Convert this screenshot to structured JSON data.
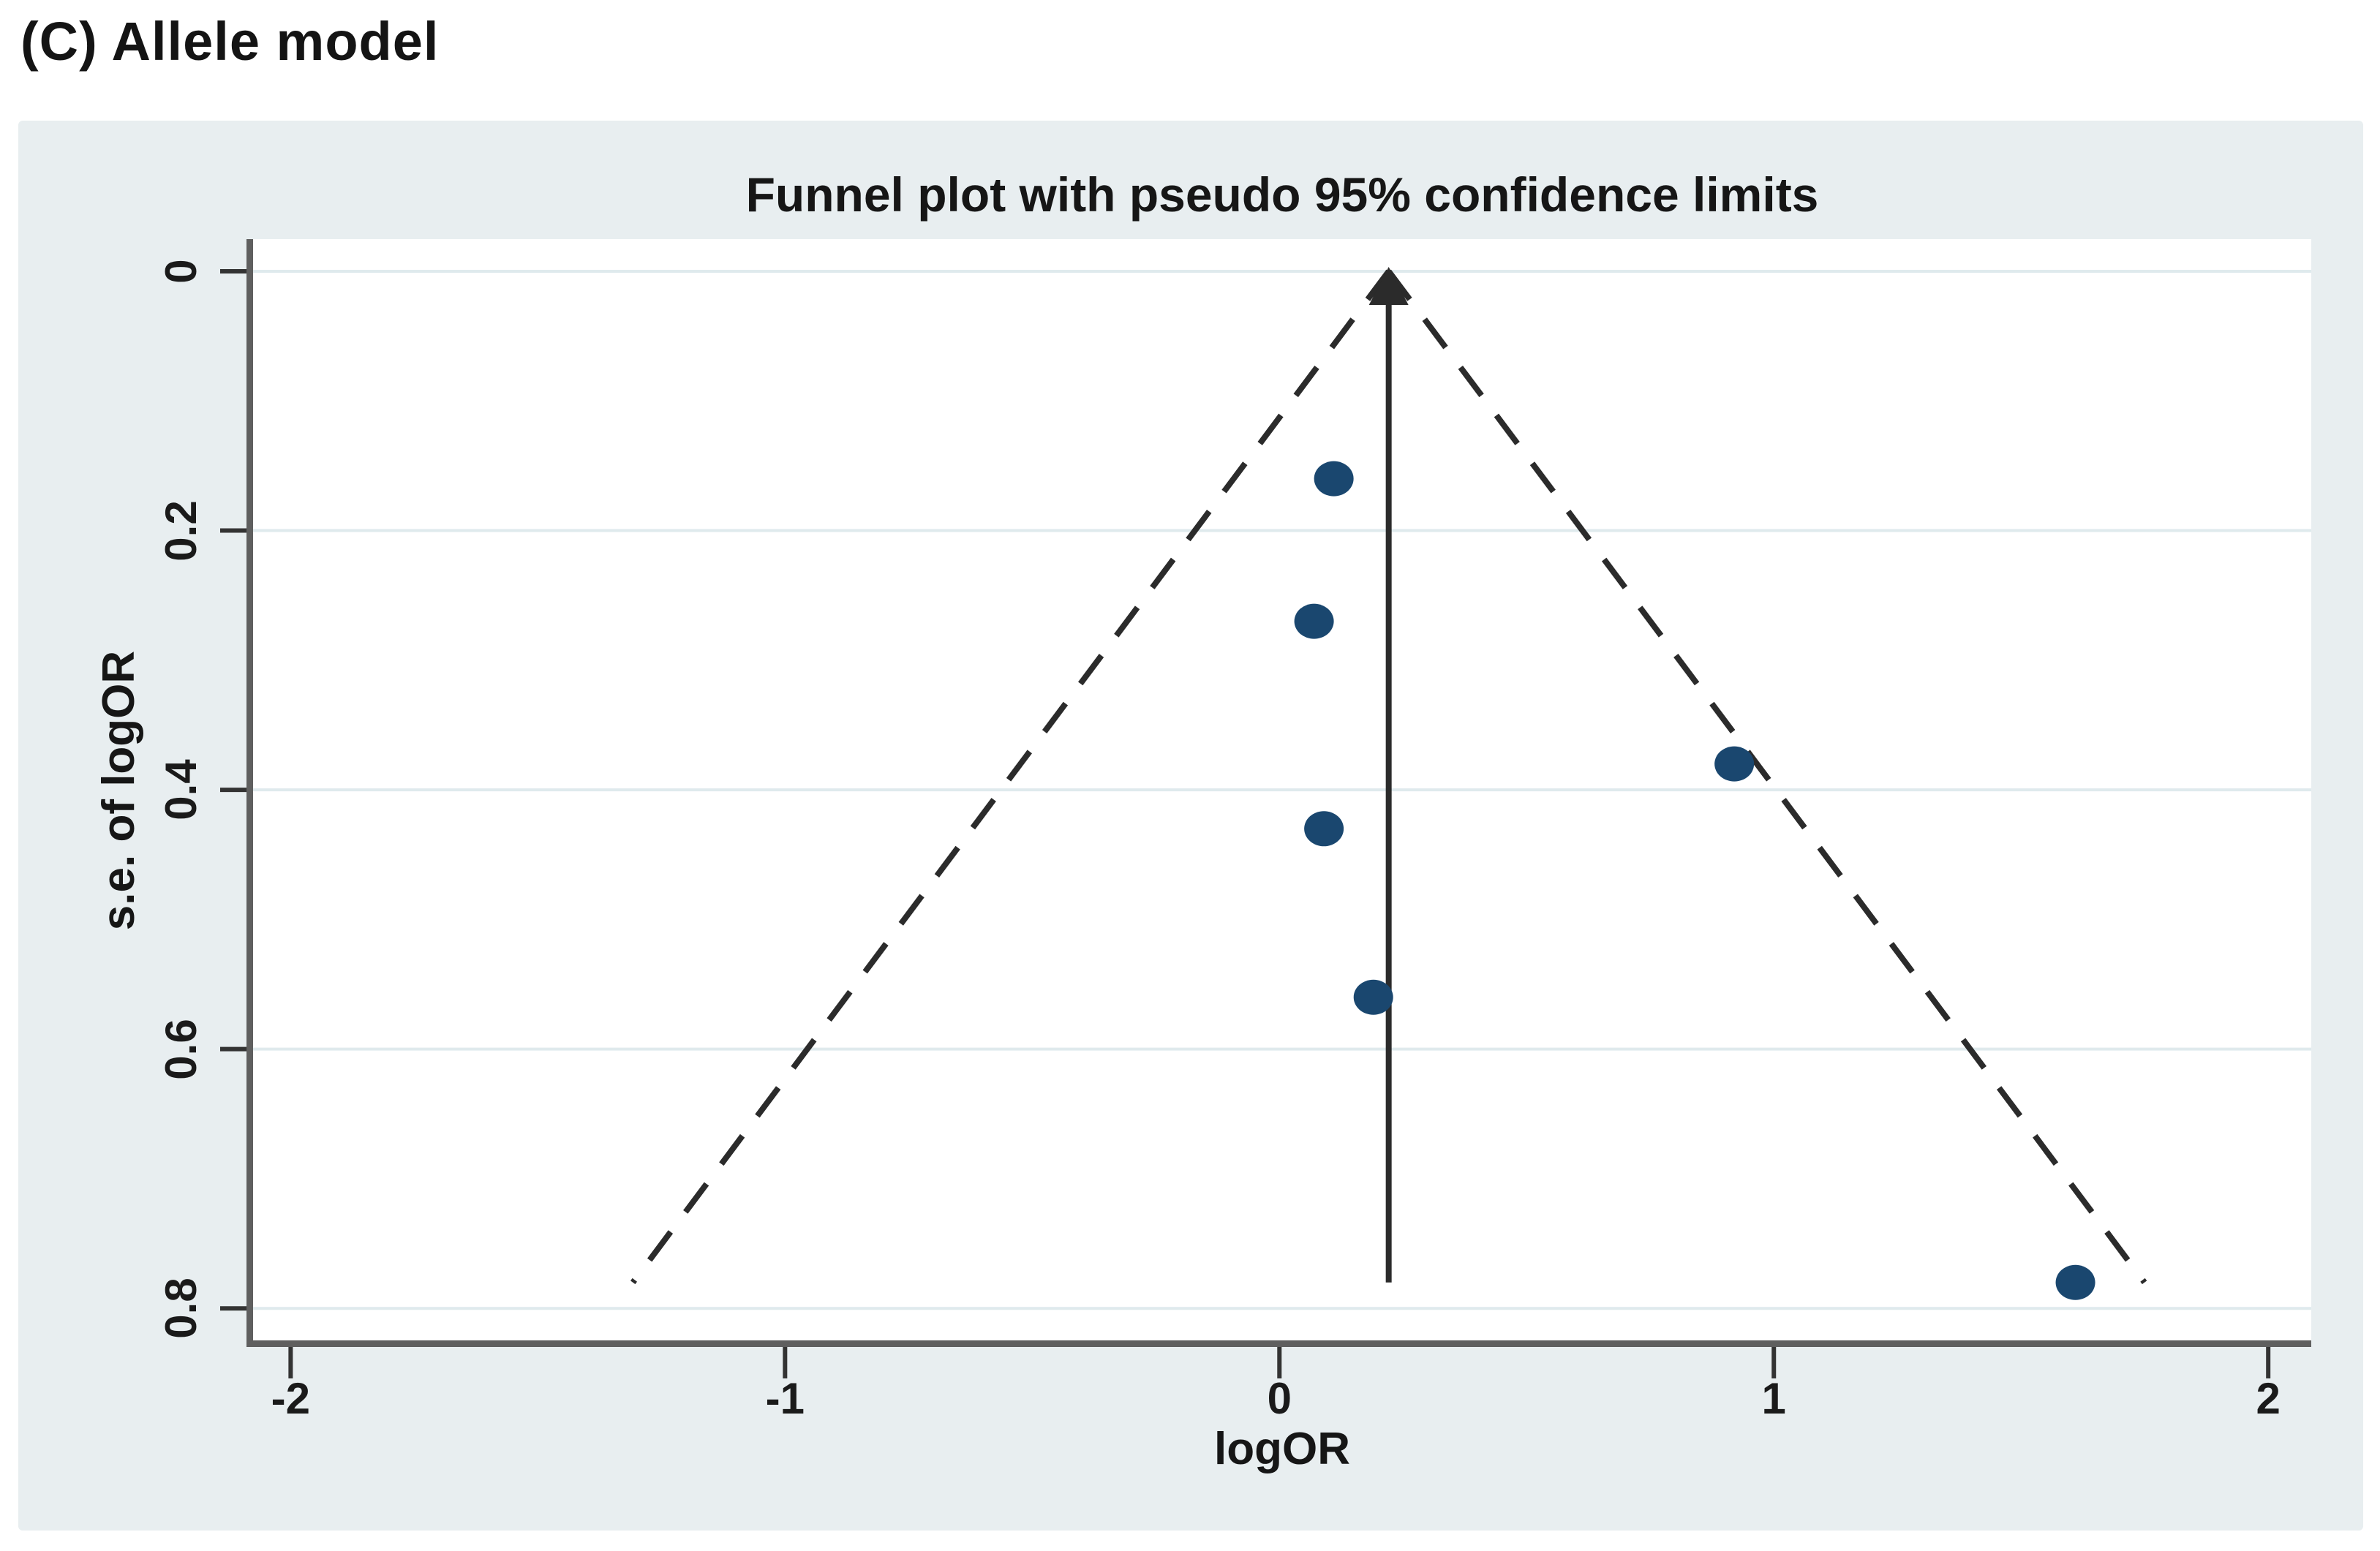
{
  "figure": {
    "label": "(C) Allele model"
  },
  "chart_data": {
    "type": "scatter",
    "subtype": "funnel-plot",
    "title": "Funnel plot with pseudo 95% confidence limits",
    "xlabel": "logOR",
    "ylabel": "s.e. of logOR",
    "xlim": [
      -2.076,
      2.087
    ],
    "ylim": [
      -0.0248,
      0.8247
    ],
    "x_ticks": [
      -2,
      -1,
      0,
      1,
      2
    ],
    "x_tick_labels": [
      "-2",
      "-1",
      "0",
      "1",
      "2"
    ],
    "y_ticks": [
      0,
      0.2,
      0.4,
      0.6,
      0.8
    ],
    "y_tick_labels": [
      "0",
      "0.2",
      "0.4",
      "0.6",
      "0.8"
    ],
    "grid": "horizontal gridlines at y ticks",
    "legend": "none",
    "points": [
      {
        "logOR": 0.11,
        "se": 0.16
      },
      {
        "logOR": 0.07,
        "se": 0.27
      },
      {
        "logOR": 0.92,
        "se": 0.38
      },
      {
        "logOR": 0.09,
        "se": 0.43
      },
      {
        "logOR": 0.19,
        "se": 0.56
      },
      {
        "logOR": 1.61,
        "se": 0.78
      }
    ],
    "pooled_logOR": 0.221,
    "pseudo_ci_z": 1.96,
    "funnel_max_se": 0.78,
    "colors": {
      "panel_bg": "#e8eef0",
      "plot_bg": "#ffffff",
      "gridline": "#dfeaed",
      "axis_line": "#5f5f5f",
      "tick": "#333333",
      "marker": "#1a476f",
      "funnel_line": "#2b2b2b",
      "text": "#000000"
    }
  }
}
